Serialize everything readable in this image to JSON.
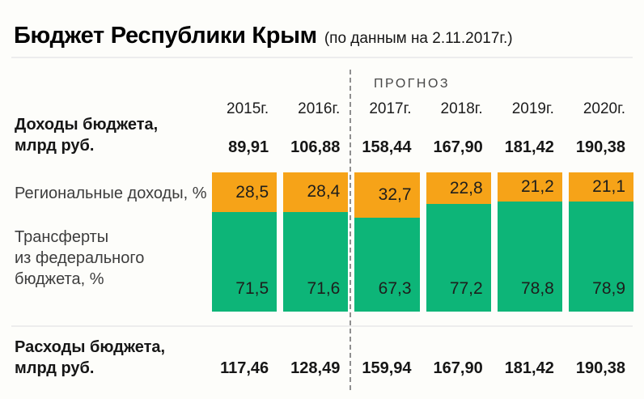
{
  "title": "Бюджет Республики Крым",
  "subtitle": "(по данным на 2.11.2017г.)",
  "forecast_label": "ПРОГНОЗ",
  "labels": {
    "revenue": [
      "Доходы бюджета,",
      "млрд руб."
    ],
    "regional": [
      "Региональные доходы, %"
    ],
    "transfers": [
      "Трансферты",
      "из федерального",
      "бюджета, %"
    ],
    "expenditure": [
      "Расходы бюджета,",
      "млрд руб."
    ]
  },
  "colors": {
    "regional": "#f6a318",
    "transfers": "#0db578"
  },
  "chart_data": {
    "type": "bar",
    "subtype": "100%-stacked-columns-with-table",
    "title": "Бюджет Республики Крым (по данным на 2.11.2017г.)",
    "categories": [
      "2015г.",
      "2016г.",
      "2017г.",
      "2018г.",
      "2019г.",
      "2020г."
    ],
    "forecast_categories": [
      "2017г.",
      "2018г.",
      "2019г.",
      "2020г."
    ],
    "legend_position": "left",
    "grid": false,
    "series": [
      {
        "name": "Доходы бюджета, млрд руб.",
        "role": "table-row",
        "values": [
          89.91,
          106.88,
          158.44,
          167.9,
          181.42,
          190.38
        ],
        "display": [
          "89,91",
          "106,88",
          "158,44",
          "167,90",
          "181,42",
          "190,38"
        ]
      },
      {
        "name": "Региональные доходы, %",
        "role": "stacked-segment-top",
        "color": "#f6a318",
        "values": [
          28.5,
          28.4,
          32.7,
          22.8,
          21.2,
          21.1
        ],
        "display": [
          "28,5",
          "28,4",
          "32,7",
          "22,8",
          "21,2",
          "21,1"
        ]
      },
      {
        "name": "Трансферты из федерального бюджета, %",
        "role": "stacked-segment-bottom",
        "color": "#0db578",
        "values": [
          71.5,
          71.6,
          67.3,
          77.2,
          78.8,
          78.9
        ],
        "display": [
          "71,5",
          "71,6",
          "67,3",
          "77,2",
          "78,8",
          "78,9"
        ]
      },
      {
        "name": "Расходы бюджета, млрд руб.",
        "role": "table-row",
        "values": [
          117.46,
          128.49,
          159.94,
          167.9,
          181.42,
          190.38
        ],
        "display": [
          "117,46",
          "128,49",
          "159,94",
          "167,90",
          "181,42",
          "190,38"
        ]
      }
    ],
    "ylim": [
      0,
      100
    ]
  }
}
